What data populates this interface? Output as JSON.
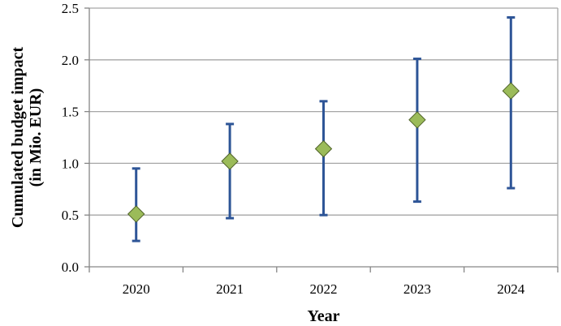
{
  "chart_data": {
    "type": "scatter",
    "title": "",
    "xlabel": "Year",
    "ylabel": "Cumulated budget impact\n(in Mio. EUR)",
    "ylabel_lines": [
      "Cumulated budget impact",
      "(in Mio. EUR)"
    ],
    "categories": [
      "2020",
      "2021",
      "2022",
      "2023",
      "2024"
    ],
    "ylim": [
      0,
      2.5
    ],
    "yticks": [
      0.0,
      0.5,
      1.0,
      1.5,
      2.0,
      2.5
    ],
    "ytick_labels": [
      "0.0",
      "0.5",
      "1.0",
      "1.5",
      "2.0",
      "2.5"
    ],
    "grid": true,
    "series": [
      {
        "values": [
          0.51,
          1.02,
          1.14,
          1.42,
          1.7
        ],
        "error_low": [
          0.25,
          0.47,
          0.5,
          0.63,
          0.76
        ],
        "error_high": [
          0.95,
          1.38,
          1.6,
          2.01,
          2.41
        ],
        "marker": "diamond",
        "marker_color": "#9BBB59",
        "marker_edge_color": "#4F6228",
        "error_bar_color": "#2E5597"
      }
    ],
    "grid_color": "#A6A6A6",
    "axis_color": "#868686"
  }
}
